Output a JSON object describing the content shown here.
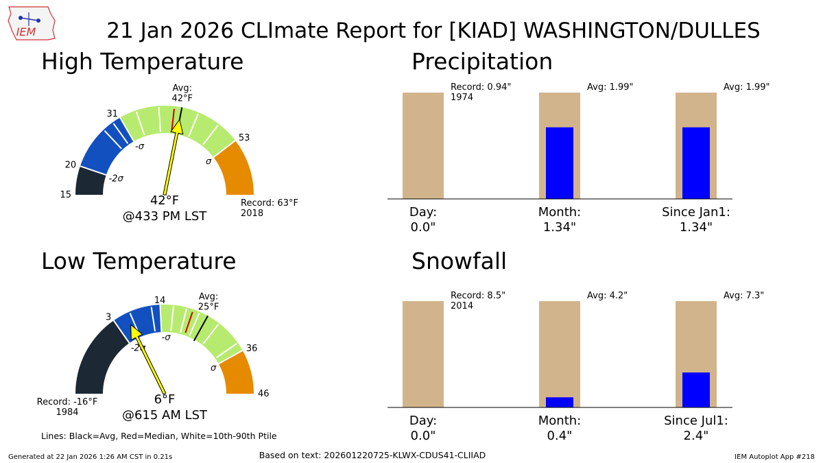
{
  "header": {
    "logo_text": "IEM",
    "title": "21 Jan 2026 CLImate Report for [KIAD] WASHINGTON/DULLES"
  },
  "footer": {
    "generated": "Generated at 22 Jan 2026 1:26 AM CST in 0.21s",
    "based_on": "Based on text: 202601220725-KLWX-CDUS41-CLIIAD",
    "app": "IEM Autoplot App #218"
  },
  "legend_note": "Lines: Black=Avg, Red=Median, White=10th-90th Ptile",
  "colors": {
    "dark": "#1c2833",
    "blue": "#1250c0",
    "green": "#b7eb6f",
    "orange": "#e68a00",
    "tan": "#d2b48c",
    "bar_blue": "#0000ff",
    "median": "#cc0000",
    "needle": "#ffff00"
  },
  "chart_data": [
    {
      "type": "gauge",
      "title": "High Temperature",
      "min": 15,
      "max": 63,
      "value": 42,
      "value_label": "42°F",
      "time_label": "@433 PM LST",
      "avg": 42,
      "median": 40.7,
      "avg_label": "Avg:\n42°F",
      "record_label": "Record: 63°F\n2018",
      "bands": [
        {
          "from": 15,
          "to": 20,
          "color": "dark"
        },
        {
          "from": 20,
          "to": 31,
          "color": "blue"
        },
        {
          "from": 31,
          "to": 53,
          "color": "green"
        },
        {
          "from": 53,
          "to": 63,
          "color": "orange"
        }
      ],
      "ptile_lines": [
        27.5,
        29.5,
        34,
        38,
        45,
        49
      ],
      "ticks": [
        {
          "v": 15,
          "t": "15"
        },
        {
          "v": 20,
          "t": "20"
        },
        {
          "v": 31,
          "t": "31"
        },
        {
          "v": 53,
          "t": "53"
        }
      ],
      "sigma_labels": [
        {
          "v": 20,
          "t": "-2σ"
        },
        {
          "v": 31,
          "t": "-σ"
        },
        {
          "v": 53,
          "t": "σ"
        }
      ]
    },
    {
      "type": "gauge",
      "title": "Low Temperature",
      "min": -16,
      "max": 46,
      "value": 6,
      "value_label": "6°F",
      "time_label": "@615 AM LST",
      "avg": 25,
      "median": 21.5,
      "avg_label": "Avg:\n25°F",
      "record_label": "Record: -16°F\n1984",
      "bands": [
        {
          "from": -16,
          "to": 3,
          "color": "dark"
        },
        {
          "from": 3,
          "to": 14,
          "color": "blue"
        },
        {
          "from": 14,
          "to": 36,
          "color": "green"
        },
        {
          "from": 36,
          "to": 46,
          "color": "orange"
        }
      ],
      "ptile_lines": [
        7,
        12,
        17,
        20,
        23,
        28,
        34
      ],
      "ticks": [
        {
          "v": 3,
          "t": "3"
        },
        {
          "v": 14,
          "t": "14"
        },
        {
          "v": 36,
          "t": "36"
        },
        {
          "v": 46,
          "t": "46"
        }
      ],
      "sigma_labels": [
        {
          "v": 3,
          "t": "-2σ"
        },
        {
          "v": 14,
          "t": "-σ"
        },
        {
          "v": 36,
          "t": "σ"
        }
      ]
    },
    {
      "type": "bar",
      "title": "Precipitation",
      "categories": [
        "Day:\n0.0\"",
        "Month:\n1.34\"",
        "Since Jan1:\n1.34\""
      ],
      "background_values": [
        0.94,
        1.99,
        1.99
      ],
      "observed_values": [
        0.0,
        1.34,
        1.34
      ],
      "annotations": [
        "Record: 0.94\"\n1974",
        "Avg: 1.99\"",
        "Avg: 1.99\""
      ]
    },
    {
      "type": "bar",
      "title": "Snowfall",
      "categories": [
        "Day:\n0.0\"",
        "Month:\n0.4\"",
        "Since Jul1:\n2.4\""
      ],
      "background_values": [
        8.5,
        4.2,
        7.3
      ],
      "observed_values": [
        0.0,
        0.4,
        2.4
      ],
      "annotations": [
        "Record: 8.5\"\n2014",
        "Avg: 4.2\"",
        "Avg: 7.3\""
      ]
    }
  ]
}
